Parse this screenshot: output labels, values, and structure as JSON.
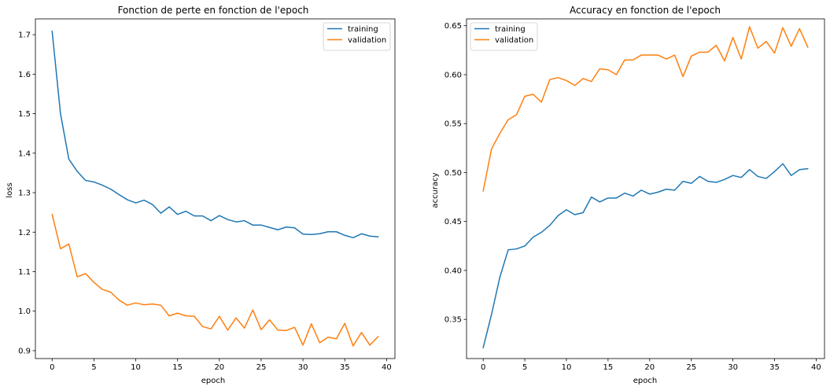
{
  "colors": {
    "training": "#1f77b4",
    "validation": "#ff7f0e",
    "axes": "#000000",
    "background": "#ffffff"
  },
  "chart_data": [
    {
      "type": "line",
      "title": "Fonction de perte en fonction de l'epoch",
      "xlabel": "epoch",
      "ylabel": "loss",
      "xlim": [
        -2,
        41
      ],
      "ylim": [
        0.88,
        1.74
      ],
      "xticks": [
        0,
        5,
        10,
        15,
        20,
        25,
        30,
        35,
        40
      ],
      "xtick_labels": [
        "0",
        "5",
        "10",
        "15",
        "20",
        "25",
        "30",
        "35",
        "40"
      ],
      "yticks": [
        0.9,
        1.0,
        1.1,
        1.2,
        1.3,
        1.4,
        1.5,
        1.6,
        1.7
      ],
      "ytick_labels": [
        "0.9",
        "1.0",
        "1.1",
        "1.2",
        "1.3",
        "1.4",
        "1.5",
        "1.6",
        "1.7"
      ],
      "grid": false,
      "legend_position": "top-right",
      "x": [
        0,
        1,
        2,
        3,
        4,
        5,
        6,
        7,
        8,
        9,
        10,
        11,
        12,
        13,
        14,
        15,
        16,
        17,
        18,
        19,
        20,
        21,
        22,
        23,
        24,
        25,
        26,
        27,
        28,
        29,
        30,
        31,
        32,
        33,
        34,
        35,
        36,
        37,
        38,
        39
      ],
      "series": [
        {
          "name": "training",
          "color": "#1f77b4",
          "values": [
            1.709,
            1.5,
            1.385,
            1.354,
            1.331,
            1.327,
            1.319,
            1.309,
            1.295,
            1.282,
            1.274,
            1.281,
            1.27,
            1.248,
            1.264,
            1.245,
            1.253,
            1.241,
            1.241,
            1.229,
            1.242,
            1.232,
            1.226,
            1.229,
            1.218,
            1.218,
            1.212,
            1.206,
            1.213,
            1.211,
            1.195,
            1.194,
            1.196,
            1.201,
            1.201,
            1.192,
            1.186,
            1.196,
            1.19,
            1.188
          ]
        },
        {
          "name": "validation",
          "color": "#ff7f0e",
          "values": [
            1.245,
            1.158,
            1.17,
            1.087,
            1.095,
            1.073,
            1.055,
            1.048,
            1.028,
            1.015,
            1.021,
            1.016,
            1.018,
            1.015,
            0.988,
            0.995,
            0.988,
            0.987,
            0.961,
            0.955,
            0.987,
            0.952,
            0.983,
            0.957,
            1.003,
            0.953,
            0.978,
            0.952,
            0.951,
            0.959,
            0.914,
            0.968,
            0.92,
            0.934,
            0.93,
            0.969,
            0.912,
            0.946,
            0.914,
            0.936
          ]
        }
      ]
    },
    {
      "type": "line",
      "title": "Accuracy en fonction de l'epoch",
      "xlabel": "epoch",
      "ylabel": "accuracy",
      "xlim": [
        -2,
        41
      ],
      "ylim": [
        0.31,
        0.657
      ],
      "xticks": [
        0,
        5,
        10,
        15,
        20,
        25,
        30,
        35,
        40
      ],
      "xtick_labels": [
        "0",
        "5",
        "10",
        "15",
        "20",
        "25",
        "30",
        "35",
        "40"
      ],
      "yticks": [
        0.35,
        0.4,
        0.45,
        0.5,
        0.55,
        0.6,
        0.65
      ],
      "ytick_labels": [
        "0.35",
        "0.40",
        "0.45",
        "0.50",
        "0.55",
        "0.60",
        "0.65"
      ],
      "grid": false,
      "legend_position": "top-left",
      "x": [
        0,
        1,
        2,
        3,
        4,
        5,
        6,
        7,
        8,
        9,
        10,
        11,
        12,
        13,
        14,
        15,
        16,
        17,
        18,
        19,
        20,
        21,
        22,
        23,
        24,
        25,
        26,
        27,
        28,
        29,
        30,
        31,
        32,
        33,
        34,
        35,
        36,
        37,
        38,
        39
      ],
      "series": [
        {
          "name": "training",
          "color": "#1f77b4",
          "values": [
            0.321,
            0.355,
            0.393,
            0.421,
            0.422,
            0.425,
            0.434,
            0.439,
            0.446,
            0.456,
            0.462,
            0.457,
            0.459,
            0.475,
            0.47,
            0.474,
            0.474,
            0.479,
            0.476,
            0.482,
            0.478,
            0.48,
            0.483,
            0.482,
            0.491,
            0.489,
            0.496,
            0.491,
            0.49,
            0.493,
            0.497,
            0.495,
            0.503,
            0.496,
            0.494,
            0.501,
            0.509,
            0.497,
            0.503,
            0.504
          ]
        },
        {
          "name": "validation",
          "color": "#ff7f0e",
          "values": [
            0.481,
            0.524,
            0.54,
            0.554,
            0.559,
            0.578,
            0.58,
            0.572,
            0.595,
            0.597,
            0.594,
            0.589,
            0.596,
            0.593,
            0.606,
            0.605,
            0.6,
            0.615,
            0.615,
            0.62,
            0.62,
            0.62,
            0.616,
            0.62,
            0.598,
            0.619,
            0.623,
            0.623,
            0.63,
            0.614,
            0.638,
            0.616,
            0.649,
            0.627,
            0.634,
            0.622,
            0.648,
            0.629,
            0.647,
            0.628
          ]
        }
      ]
    }
  ]
}
